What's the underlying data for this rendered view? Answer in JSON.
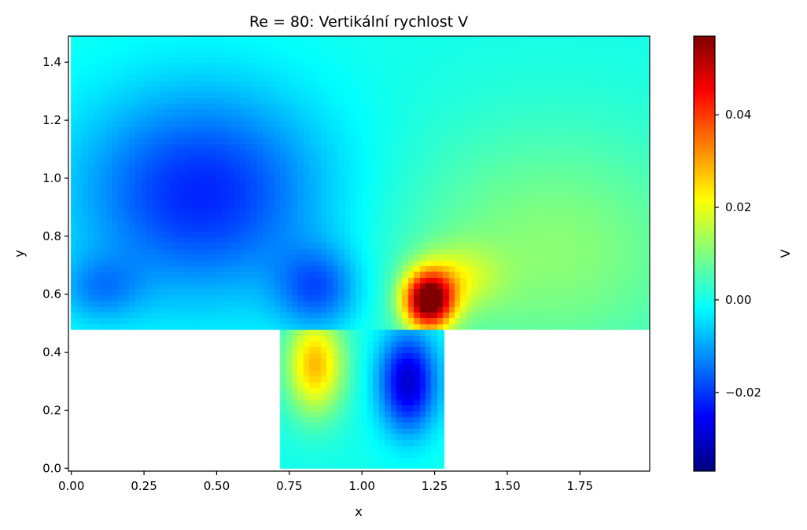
{
  "chart_data": {
    "type": "heatmap",
    "title": "Re = 80: Vertikální rychlost V",
    "xlabel": "x",
    "ylabel": "y",
    "xlim": [
      -0.01,
      1.99
    ],
    "ylim": [
      -0.01,
      1.49
    ],
    "x_ticks": [
      "0.00",
      "0.25",
      "0.50",
      "0.75",
      "1.00",
      "1.25",
      "1.50",
      "1.75"
    ],
    "x_tick_values": [
      0.0,
      0.25,
      0.5,
      0.75,
      1.0,
      1.25,
      1.5,
      1.75
    ],
    "y_ticks": [
      "0.0",
      "0.2",
      "0.4",
      "0.6",
      "0.8",
      "1.0",
      "1.2",
      "1.4"
    ],
    "y_tick_values": [
      0.0,
      0.2,
      0.4,
      0.6,
      0.8,
      1.0,
      1.2,
      1.4
    ],
    "colormap": "jet",
    "colorbar": {
      "label": "V",
      "vmin": -0.037,
      "vmax": 0.057,
      "ticks": [
        "0.04",
        "0.02",
        "0.00",
        "−0.02"
      ],
      "tick_values": [
        0.04,
        0.02,
        0.0,
        -0.02
      ]
    },
    "domain": {
      "upper_channel": {
        "x": [
          0.0,
          2.0
        ],
        "y": [
          0.49,
          1.5
        ]
      },
      "cavity": {
        "x": [
          0.73,
          1.27
        ],
        "y": [
          0.0,
          0.49
        ]
      }
    },
    "grid": false
  }
}
